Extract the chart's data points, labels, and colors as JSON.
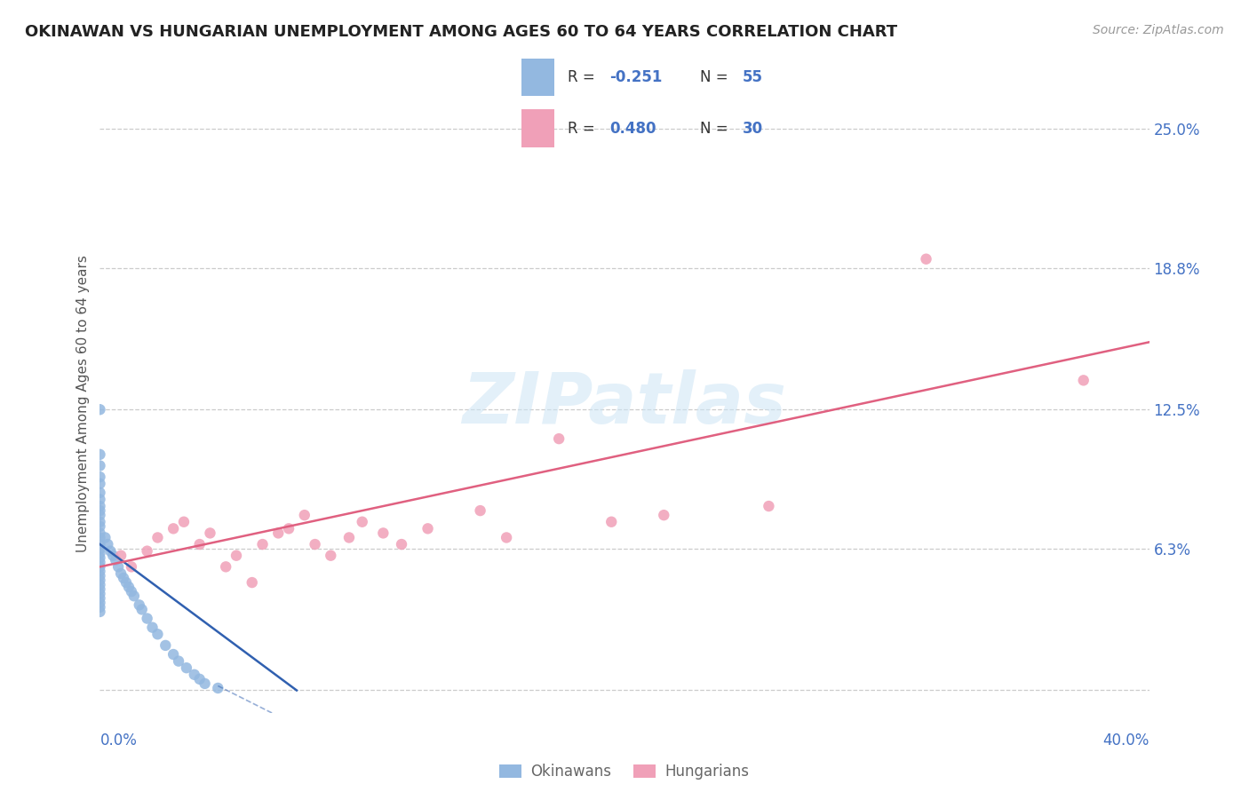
{
  "title": "OKINAWAN VS HUNGARIAN UNEMPLOYMENT AMONG AGES 60 TO 64 YEARS CORRELATION CHART",
  "source_text": "Source: ZipAtlas.com",
  "ylabel": "Unemployment Among Ages 60 to 64 years",
  "xlim": [
    0.0,
    0.4
  ],
  "ylim": [
    -0.01,
    0.265
  ],
  "yticks": [
    0.0,
    0.063,
    0.125,
    0.188,
    0.25
  ],
  "ytick_labels": [
    "",
    "6.3%",
    "12.5%",
    "18.8%",
    "25.0%"
  ],
  "axis_color": "#4472c4",
  "okinawan_color": "#93b8e0",
  "hungarian_color": "#f0a0b8",
  "trendline_okinawan_color": "#3060b0",
  "trendline_hungarian_color": "#e06080",
  "watermark_text": "ZIPatlas",
  "okinawan_x": [
    0.0,
    0.0,
    0.0,
    0.0,
    0.0,
    0.0,
    0.0,
    0.0,
    0.0,
    0.0,
    0.0,
    0.0,
    0.0,
    0.0,
    0.0,
    0.0,
    0.0,
    0.0,
    0.0,
    0.0,
    0.0,
    0.0,
    0.0,
    0.0,
    0.0,
    0.0,
    0.0,
    0.0,
    0.0,
    0.0,
    0.002,
    0.003,
    0.004,
    0.005,
    0.006,
    0.007,
    0.008,
    0.009,
    0.01,
    0.011,
    0.012,
    0.013,
    0.015,
    0.016,
    0.018,
    0.02,
    0.022,
    0.025,
    0.028,
    0.03,
    0.033,
    0.036,
    0.038,
    0.04,
    0.045
  ],
  "okinawan_y": [
    0.125,
    0.105,
    0.1,
    0.095,
    0.092,
    0.088,
    0.085,
    0.082,
    0.08,
    0.078,
    0.075,
    0.073,
    0.07,
    0.068,
    0.065,
    0.063,
    0.061,
    0.059,
    0.057,
    0.055,
    0.053,
    0.051,
    0.049,
    0.047,
    0.045,
    0.043,
    0.041,
    0.039,
    0.037,
    0.035,
    0.068,
    0.065,
    0.062,
    0.06,
    0.058,
    0.055,
    0.052,
    0.05,
    0.048,
    0.046,
    0.044,
    0.042,
    0.038,
    0.036,
    0.032,
    0.028,
    0.025,
    0.02,
    0.016,
    0.013,
    0.01,
    0.007,
    0.005,
    0.003,
    0.001
  ],
  "hungarian_x": [
    0.008,
    0.012,
    0.018,
    0.022,
    0.028,
    0.032,
    0.038,
    0.042,
    0.048,
    0.052,
    0.058,
    0.062,
    0.068,
    0.072,
    0.078,
    0.082,
    0.088,
    0.095,
    0.1,
    0.108,
    0.115,
    0.125,
    0.145,
    0.155,
    0.175,
    0.195,
    0.215,
    0.255,
    0.315,
    0.375
  ],
  "hungarian_y": [
    0.06,
    0.055,
    0.062,
    0.068,
    0.072,
    0.075,
    0.065,
    0.07,
    0.055,
    0.06,
    0.048,
    0.065,
    0.07,
    0.072,
    0.078,
    0.065,
    0.06,
    0.068,
    0.075,
    0.07,
    0.065,
    0.072,
    0.08,
    0.068,
    0.112,
    0.075,
    0.078,
    0.082,
    0.192,
    0.138
  ]
}
